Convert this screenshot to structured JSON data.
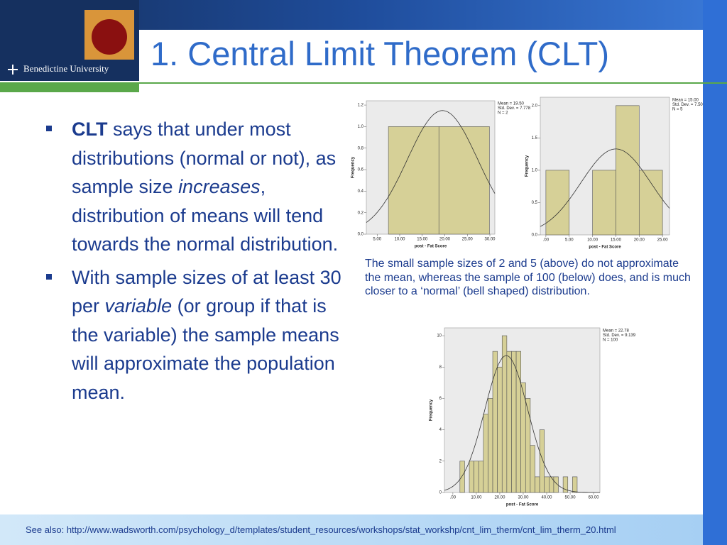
{
  "header": {
    "title": "1. Central Limit Theorem (CLT)",
    "logo_text": "Benedictine University"
  },
  "bullets": [
    [
      {
        "text": "CLT",
        "style": "bold"
      },
      {
        "text": " says that under most distributions (normal or not), as sample size "
      },
      {
        "text": "increases",
        "style": "italic"
      },
      {
        "text": ", distribution of means will tend towards the normal distribution."
      }
    ],
    [
      {
        "text": "With sample sizes of at least 30 per "
      },
      {
        "text": "variable",
        "style": "italic"
      },
      {
        "text": " (or group if that is the variable) the sample means will approximate the population mean."
      }
    ]
  ],
  "caption": "The small sample sizes of 2 and 5 (above) do not approximate the mean, whereas the sample of 100 (below) does, and is much closer to a ‘normal’ (bell shaped) distribution.",
  "footer": "See also: http://www.wadsworth.com/psychology_d/templates/student_resources/workshops/stat_workshp/cnt_lim_therm/cnt_lim_therm_20.html",
  "chart_data": [
    {
      "type": "histogram",
      "x_label": "post - Fat Score",
      "y_label": "Frequency",
      "color": "#d6d097",
      "bins": [
        7.5,
        18.7,
        29.9
      ],
      "values": [
        1,
        1
      ],
      "stats": [
        {
          "label": "Mean = 19.50",
          "value": 19.5
        },
        {
          "label": "Std. Dev. = 7.778",
          "value": 7.778
        },
        {
          "label": "N = 2",
          "value": 2
        }
      ],
      "xlim": [
        2.6,
        31.1
      ],
      "ylim": [
        0,
        1.24
      ],
      "xticks": [
        {
          "value": 5,
          "label": "5.00"
        },
        {
          "value": 10,
          "label": "10.00"
        },
        {
          "value": 15,
          "label": "15.00"
        },
        {
          "value": 20,
          "label": "20.00"
        },
        {
          "value": 25,
          "label": "25.00"
        },
        {
          "value": 30,
          "label": "30.00"
        }
      ],
      "yticks": [
        {
          "value": 0,
          "label": "0.0"
        },
        {
          "value": 0.2,
          "label": "0.2"
        },
        {
          "value": 0.4,
          "label": "0.4"
        },
        {
          "value": 0.6,
          "label": "0.6"
        },
        {
          "value": 0.8,
          "label": "0.8"
        },
        {
          "value": 1,
          "label": "1.0"
        },
        {
          "value": 1.2,
          "label": "1.2"
        }
      ]
    },
    {
      "type": "histogram",
      "x_label": "post - Fat Score",
      "y_label": "Frequency",
      "color": "#d6d097",
      "bins": [
        0,
        5,
        10,
        15,
        20,
        25
      ],
      "values": [
        1,
        0,
        1,
        2,
        1
      ],
      "stats": [
        {
          "label": "Mean = 15.00",
          "value": 15
        },
        {
          "label": "Std. Dev. = 7.50",
          "value": 7.5
        },
        {
          "label": "N = 5",
          "value": 5
        }
      ],
      "xlim": [
        -1.2,
        26.5
      ],
      "ylim": [
        0,
        2.13
      ],
      "xticks": [
        {
          "value": 0,
          "label": ".00"
        },
        {
          "value": 5,
          "label": "5.00"
        },
        {
          "value": 10,
          "label": "10.00"
        },
        {
          "value": 15,
          "label": "15.00"
        },
        {
          "value": 20,
          "label": "20.00"
        },
        {
          "value": 25,
          "label": "25.00"
        }
      ],
      "yticks": [
        {
          "value": 0,
          "label": "0.0"
        },
        {
          "value": 0.5,
          "label": "0.5"
        },
        {
          "value": 1,
          "label": "1.0"
        },
        {
          "value": 1.5,
          "label": "1.5"
        },
        {
          "value": 2,
          "label": "2.0"
        }
      ]
    },
    {
      "type": "histogram",
      "x_label": "post - Fat Score",
      "y_label": "Frequency",
      "color": "#d6d097",
      "bins": [
        3,
        5,
        7,
        9,
        11,
        13,
        15,
        17,
        19,
        21,
        23,
        25,
        27,
        29,
        31,
        33,
        35,
        37,
        39,
        41,
        43,
        45,
        47,
        49,
        51,
        53
      ],
      "values": [
        2,
        0,
        2,
        2,
        2,
        5,
        6,
        9,
        8,
        10,
        9,
        9,
        9,
        7,
        6,
        3,
        1,
        4,
        1,
        1,
        1,
        0,
        1,
        0,
        1
      ],
      "stats": [
        {
          "label": "Mean = 22.78",
          "value": 22.78
        },
        {
          "label": "Std. Dev. = 9.139",
          "value": 9.139
        },
        {
          "label": "N = 100",
          "value": 100
        }
      ],
      "xlim": [
        -3.6,
        62.7
      ],
      "ylim": [
        0,
        10.5
      ],
      "xticks": [
        {
          "value": 0,
          "label": ".00"
        },
        {
          "value": 10,
          "label": "10.00"
        },
        {
          "value": 20,
          "label": "20.00"
        },
        {
          "value": 30,
          "label": "30.00"
        },
        {
          "value": 40,
          "label": "40.00"
        },
        {
          "value": 50,
          "label": "50.00"
        },
        {
          "value": 60,
          "label": "60.00"
        }
      ],
      "yticks": [
        0,
        2,
        4,
        6,
        8,
        10
      ]
    }
  ]
}
